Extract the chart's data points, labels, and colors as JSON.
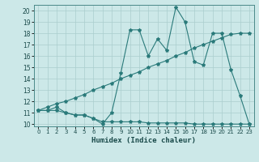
{
  "line1_x": [
    0,
    1,
    2,
    3,
    4,
    5,
    6,
    7,
    8,
    9,
    10,
    11,
    12,
    13,
    14,
    15,
    16,
    17,
    18,
    19,
    20,
    21,
    22,
    23
  ],
  "line1_y": [
    11.2,
    11.2,
    11.5,
    11.0,
    10.8,
    10.8,
    10.5,
    10.0,
    11.0,
    14.5,
    18.3,
    18.3,
    16.0,
    17.5,
    16.5,
    20.3,
    19.0,
    15.5,
    15.2,
    18.0,
    18.0,
    14.8,
    12.5,
    10.0
  ],
  "line2_x": [
    0,
    1,
    2,
    3,
    4,
    5,
    6,
    7,
    8,
    9,
    10,
    11,
    12,
    13,
    14,
    15,
    16,
    17,
    18,
    19,
    20,
    21,
    22,
    23
  ],
  "line2_y": [
    11.2,
    11.5,
    11.8,
    12.0,
    12.3,
    12.6,
    13.0,
    13.3,
    13.6,
    14.0,
    14.3,
    14.6,
    15.0,
    15.3,
    15.6,
    16.0,
    16.3,
    16.7,
    17.0,
    17.3,
    17.6,
    17.9,
    18.0,
    18.0
  ],
  "line3_x": [
    0,
    1,
    2,
    3,
    4,
    5,
    6,
    7,
    8,
    9,
    10,
    11,
    12,
    13,
    14,
    15,
    16,
    17,
    18,
    19,
    20,
    21,
    22,
    23
  ],
  "line3_y": [
    11.2,
    11.2,
    11.2,
    11.0,
    10.8,
    10.8,
    10.5,
    10.2,
    10.2,
    10.2,
    10.2,
    10.2,
    10.1,
    10.1,
    10.1,
    10.1,
    10.1,
    10.0,
    10.0,
    10.0,
    10.0,
    10.0,
    10.0,
    10.0
  ],
  "line_color": "#2a7a7a",
  "bg_color": "#cce8e8",
  "grid_color": "#aacece",
  "xlabel": "Humidex (Indice chaleur)",
  "xlim": [
    -0.5,
    23.5
  ],
  "ylim": [
    9.8,
    20.5
  ],
  "yticks": [
    10,
    11,
    12,
    13,
    14,
    15,
    16,
    17,
    18,
    19,
    20
  ],
  "xticks": [
    0,
    1,
    2,
    3,
    4,
    5,
    6,
    7,
    8,
    9,
    10,
    11,
    12,
    13,
    14,
    15,
    16,
    17,
    18,
    19,
    20,
    21,
    22,
    23
  ],
  "label_fontsize": 6.5,
  "tick_fontsize": 5.5,
  "marker": "*",
  "markersize": 3.0,
  "linewidth": 0.8
}
